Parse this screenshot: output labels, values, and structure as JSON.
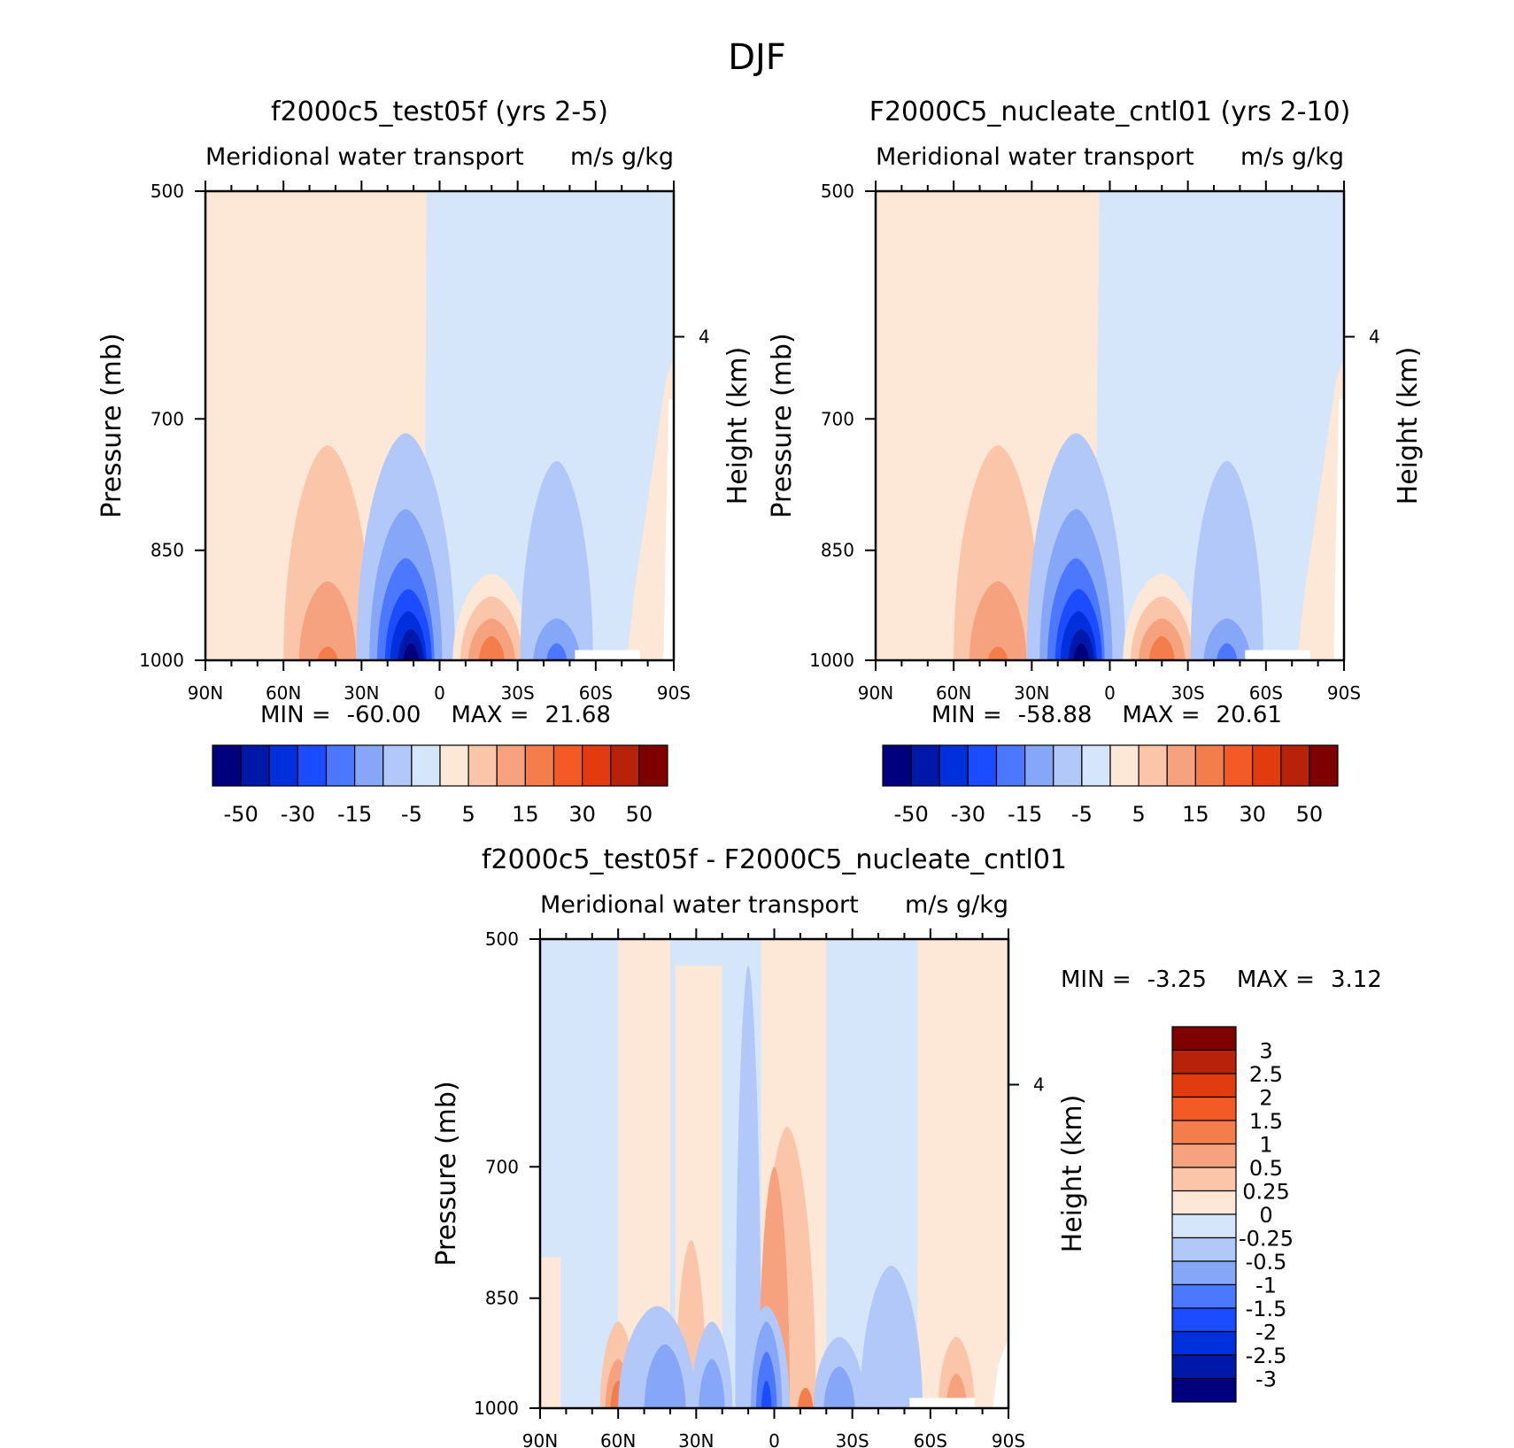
{
  "page_title": "DJF",
  "chart_data": [
    {
      "type": "heatmap",
      "title": "f2000c5_test05f (yrs 2-5)",
      "subtitle_left": "Meridional water transport",
      "subtitle_right": "m/s g/kg",
      "xlabel": "",
      "ylabel": "Pressure (mb)",
      "y2label": "Height (km)",
      "x_ticks": [
        "90N",
        "60N",
        "30N",
        "0",
        "30S",
        "60S",
        "90S"
      ],
      "x_values": [
        90,
        60,
        30,
        0,
        -30,
        -60,
        -90
      ],
      "y_ticks": [
        "500",
        "700",
        "850",
        "1000"
      ],
      "y_values": [
        500,
        700,
        850,
        1000
      ],
      "y2_ticks": [
        "4"
      ],
      "ylim": [
        500,
        1000
      ],
      "xlim": [
        90,
        -90
      ],
      "min_label": "MIN =",
      "min_value": "-60.00",
      "max_label": "MAX =",
      "max_value": "21.68",
      "colorbar_labels": [
        "-50",
        "-30",
        "-15",
        "-5",
        "5",
        "15",
        "30",
        "50"
      ],
      "colorbar_colors": [
        "#00007f",
        "#0018a8",
        "#0030dc",
        "#1c4cff",
        "#4c78ff",
        "#86a6f7",
        "#b2c8f9",
        "#d6e6fa",
        "#fde7d6",
        "#fbc5aa",
        "#f6a27f",
        "#f47d4c",
        "#f45a26",
        "#e23b0f",
        "#b8210a",
        "#7f0000"
      ],
      "field": {
        "background_positive": "#fde7d6",
        "background_negative": "#d6e6fa",
        "positive_centers": [
          {
            "lat": 45,
            "p": 1000,
            "levels": [
              "#fbc5aa",
              "#f6a27f",
              "#f47d4c"
            ]
          },
          {
            "lat": -20,
            "p": 1000,
            "levels": [
              "#fbc5aa",
              "#f6a27f",
              "#f47d4c"
            ]
          }
        ],
        "negative_centers": [
          {
            "lat": 12,
            "p": 1000,
            "levels": [
              "#b2c8f9",
              "#86a6f7",
              "#4c78ff",
              "#1c4cff",
              "#0030dc",
              "#0018a8",
              "#00007f"
            ]
          },
          {
            "lat": -45,
            "p": 1000,
            "levels": [
              "#b2c8f9",
              "#86a6f7",
              "#4c78ff"
            ]
          }
        ]
      }
    },
    {
      "type": "heatmap",
      "title": "F2000C5_nucleate_cntl01 (yrs 2-10)",
      "subtitle_left": "Meridional water transport",
      "subtitle_right": "m/s g/kg",
      "xlabel": "",
      "ylabel": "Pressure (mb)",
      "y2label": "Height (km)",
      "x_ticks": [
        "90N",
        "60N",
        "30N",
        "0",
        "30S",
        "60S",
        "90S"
      ],
      "x_values": [
        90,
        60,
        30,
        0,
        -30,
        -60,
        -90
      ],
      "y_ticks": [
        "500",
        "700",
        "850",
        "1000"
      ],
      "y_values": [
        500,
        700,
        850,
        1000
      ],
      "y2_ticks": [
        "4"
      ],
      "ylim": [
        500,
        1000
      ],
      "xlim": [
        90,
        -90
      ],
      "min_label": "MIN =",
      "min_value": "-58.88",
      "max_label": "MAX =",
      "max_value": "20.61",
      "colorbar_labels": [
        "-50",
        "-30",
        "-15",
        "-5",
        "5",
        "15",
        "30",
        "50"
      ],
      "colorbar_colors": [
        "#00007f",
        "#0018a8",
        "#0030dc",
        "#1c4cff",
        "#4c78ff",
        "#86a6f7",
        "#b2c8f9",
        "#d6e6fa",
        "#fde7d6",
        "#fbc5aa",
        "#f6a27f",
        "#f47d4c",
        "#f45a26",
        "#e23b0f",
        "#b8210a",
        "#7f0000"
      ]
    },
    {
      "type": "heatmap",
      "title": "f2000c5_test05f - F2000C5_nucleate_cntl01",
      "subtitle_left": "Meridional water transport",
      "subtitle_right": "m/s g/kg",
      "xlabel": "",
      "ylabel": "Pressure (mb)",
      "y2label": "Height (km)",
      "x_ticks": [
        "90N",
        "60N",
        "30N",
        "0",
        "30S",
        "60S",
        "90S"
      ],
      "x_values": [
        90,
        60,
        30,
        0,
        -30,
        -60,
        -90
      ],
      "y_ticks": [
        "500",
        "700",
        "850",
        "1000"
      ],
      "y_values": [
        500,
        700,
        850,
        1000
      ],
      "y2_ticks": [
        "4"
      ],
      "ylim": [
        500,
        1000
      ],
      "xlim": [
        90,
        -90
      ],
      "min_label": "MIN =",
      "min_value": "-3.25",
      "max_label": "MAX =",
      "max_value": "3.12",
      "colorbar_labels": [
        "3",
        "2.5",
        "2",
        "1.5",
        "1",
        "0.5",
        "0.25",
        "0",
        "-0.25",
        "-0.5",
        "-1",
        "-1.5",
        "-2",
        "-2.5",
        "-3"
      ],
      "colorbar_colors": [
        "#7f0000",
        "#b8210a",
        "#e23b0f",
        "#f45a26",
        "#f47d4c",
        "#f6a27f",
        "#fbc5aa",
        "#fde7d6",
        "#d6e6fa",
        "#b2c8f9",
        "#86a6f7",
        "#4c78ff",
        "#1c4cff",
        "#0030dc",
        "#0018a8",
        "#00007f"
      ]
    }
  ]
}
